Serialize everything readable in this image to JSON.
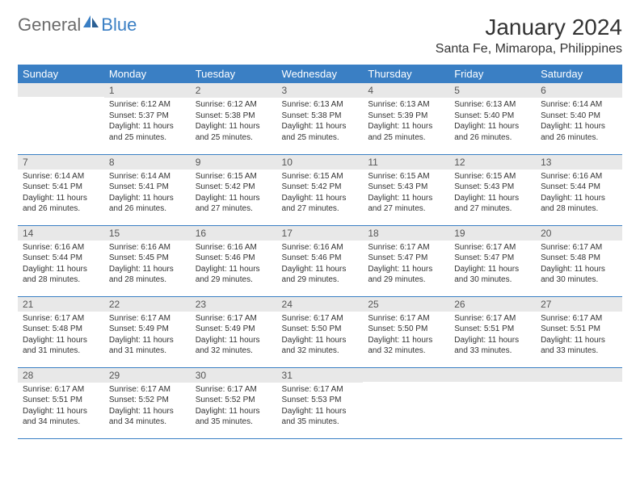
{
  "brand": {
    "name_gray": "General",
    "name_blue": "Blue"
  },
  "title": "January 2024",
  "location": "Santa Fe, Mimaropa, Philippines",
  "colors": {
    "header_bg": "#3a7fc4",
    "header_text": "#ffffff",
    "daynum_bg": "#e8e8e8",
    "row_border": "#3a7fc4",
    "body_text": "#333333",
    "logo_gray": "#6b6b6b",
    "logo_blue": "#3a7fc4",
    "page_bg": "#ffffff"
  },
  "fonts": {
    "title_size": 28,
    "location_size": 16,
    "weekday_size": 13,
    "daynum_size": 12,
    "cell_size": 10
  },
  "weekdays": [
    "Sunday",
    "Monday",
    "Tuesday",
    "Wednesday",
    "Thursday",
    "Friday",
    "Saturday"
  ],
  "weeks": [
    [
      {
        "n": "",
        "sr": "",
        "ss": "",
        "dl": ""
      },
      {
        "n": "1",
        "sr": "Sunrise: 6:12 AM",
        "ss": "Sunset: 5:37 PM",
        "dl": "Daylight: 11 hours and 25 minutes."
      },
      {
        "n": "2",
        "sr": "Sunrise: 6:12 AM",
        "ss": "Sunset: 5:38 PM",
        "dl": "Daylight: 11 hours and 25 minutes."
      },
      {
        "n": "3",
        "sr": "Sunrise: 6:13 AM",
        "ss": "Sunset: 5:38 PM",
        "dl": "Daylight: 11 hours and 25 minutes."
      },
      {
        "n": "4",
        "sr": "Sunrise: 6:13 AM",
        "ss": "Sunset: 5:39 PM",
        "dl": "Daylight: 11 hours and 25 minutes."
      },
      {
        "n": "5",
        "sr": "Sunrise: 6:13 AM",
        "ss": "Sunset: 5:40 PM",
        "dl": "Daylight: 11 hours and 26 minutes."
      },
      {
        "n": "6",
        "sr": "Sunrise: 6:14 AM",
        "ss": "Sunset: 5:40 PM",
        "dl": "Daylight: 11 hours and 26 minutes."
      }
    ],
    [
      {
        "n": "7",
        "sr": "Sunrise: 6:14 AM",
        "ss": "Sunset: 5:41 PM",
        "dl": "Daylight: 11 hours and 26 minutes."
      },
      {
        "n": "8",
        "sr": "Sunrise: 6:14 AM",
        "ss": "Sunset: 5:41 PM",
        "dl": "Daylight: 11 hours and 26 minutes."
      },
      {
        "n": "9",
        "sr": "Sunrise: 6:15 AM",
        "ss": "Sunset: 5:42 PM",
        "dl": "Daylight: 11 hours and 27 minutes."
      },
      {
        "n": "10",
        "sr": "Sunrise: 6:15 AM",
        "ss": "Sunset: 5:42 PM",
        "dl": "Daylight: 11 hours and 27 minutes."
      },
      {
        "n": "11",
        "sr": "Sunrise: 6:15 AM",
        "ss": "Sunset: 5:43 PM",
        "dl": "Daylight: 11 hours and 27 minutes."
      },
      {
        "n": "12",
        "sr": "Sunrise: 6:15 AM",
        "ss": "Sunset: 5:43 PM",
        "dl": "Daylight: 11 hours and 27 minutes."
      },
      {
        "n": "13",
        "sr": "Sunrise: 6:16 AM",
        "ss": "Sunset: 5:44 PM",
        "dl": "Daylight: 11 hours and 28 minutes."
      }
    ],
    [
      {
        "n": "14",
        "sr": "Sunrise: 6:16 AM",
        "ss": "Sunset: 5:44 PM",
        "dl": "Daylight: 11 hours and 28 minutes."
      },
      {
        "n": "15",
        "sr": "Sunrise: 6:16 AM",
        "ss": "Sunset: 5:45 PM",
        "dl": "Daylight: 11 hours and 28 minutes."
      },
      {
        "n": "16",
        "sr": "Sunrise: 6:16 AM",
        "ss": "Sunset: 5:46 PM",
        "dl": "Daylight: 11 hours and 29 minutes."
      },
      {
        "n": "17",
        "sr": "Sunrise: 6:16 AM",
        "ss": "Sunset: 5:46 PM",
        "dl": "Daylight: 11 hours and 29 minutes."
      },
      {
        "n": "18",
        "sr": "Sunrise: 6:17 AM",
        "ss": "Sunset: 5:47 PM",
        "dl": "Daylight: 11 hours and 29 minutes."
      },
      {
        "n": "19",
        "sr": "Sunrise: 6:17 AM",
        "ss": "Sunset: 5:47 PM",
        "dl": "Daylight: 11 hours and 30 minutes."
      },
      {
        "n": "20",
        "sr": "Sunrise: 6:17 AM",
        "ss": "Sunset: 5:48 PM",
        "dl": "Daylight: 11 hours and 30 minutes."
      }
    ],
    [
      {
        "n": "21",
        "sr": "Sunrise: 6:17 AM",
        "ss": "Sunset: 5:48 PM",
        "dl": "Daylight: 11 hours and 31 minutes."
      },
      {
        "n": "22",
        "sr": "Sunrise: 6:17 AM",
        "ss": "Sunset: 5:49 PM",
        "dl": "Daylight: 11 hours and 31 minutes."
      },
      {
        "n": "23",
        "sr": "Sunrise: 6:17 AM",
        "ss": "Sunset: 5:49 PM",
        "dl": "Daylight: 11 hours and 32 minutes."
      },
      {
        "n": "24",
        "sr": "Sunrise: 6:17 AM",
        "ss": "Sunset: 5:50 PM",
        "dl": "Daylight: 11 hours and 32 minutes."
      },
      {
        "n": "25",
        "sr": "Sunrise: 6:17 AM",
        "ss": "Sunset: 5:50 PM",
        "dl": "Daylight: 11 hours and 32 minutes."
      },
      {
        "n": "26",
        "sr": "Sunrise: 6:17 AM",
        "ss": "Sunset: 5:51 PM",
        "dl": "Daylight: 11 hours and 33 minutes."
      },
      {
        "n": "27",
        "sr": "Sunrise: 6:17 AM",
        "ss": "Sunset: 5:51 PM",
        "dl": "Daylight: 11 hours and 33 minutes."
      }
    ],
    [
      {
        "n": "28",
        "sr": "Sunrise: 6:17 AM",
        "ss": "Sunset: 5:51 PM",
        "dl": "Daylight: 11 hours and 34 minutes."
      },
      {
        "n": "29",
        "sr": "Sunrise: 6:17 AM",
        "ss": "Sunset: 5:52 PM",
        "dl": "Daylight: 11 hours and 34 minutes."
      },
      {
        "n": "30",
        "sr": "Sunrise: 6:17 AM",
        "ss": "Sunset: 5:52 PM",
        "dl": "Daylight: 11 hours and 35 minutes."
      },
      {
        "n": "31",
        "sr": "Sunrise: 6:17 AM",
        "ss": "Sunset: 5:53 PM",
        "dl": "Daylight: 11 hours and 35 minutes."
      },
      {
        "n": "",
        "sr": "",
        "ss": "",
        "dl": ""
      },
      {
        "n": "",
        "sr": "",
        "ss": "",
        "dl": ""
      },
      {
        "n": "",
        "sr": "",
        "ss": "",
        "dl": ""
      }
    ]
  ]
}
